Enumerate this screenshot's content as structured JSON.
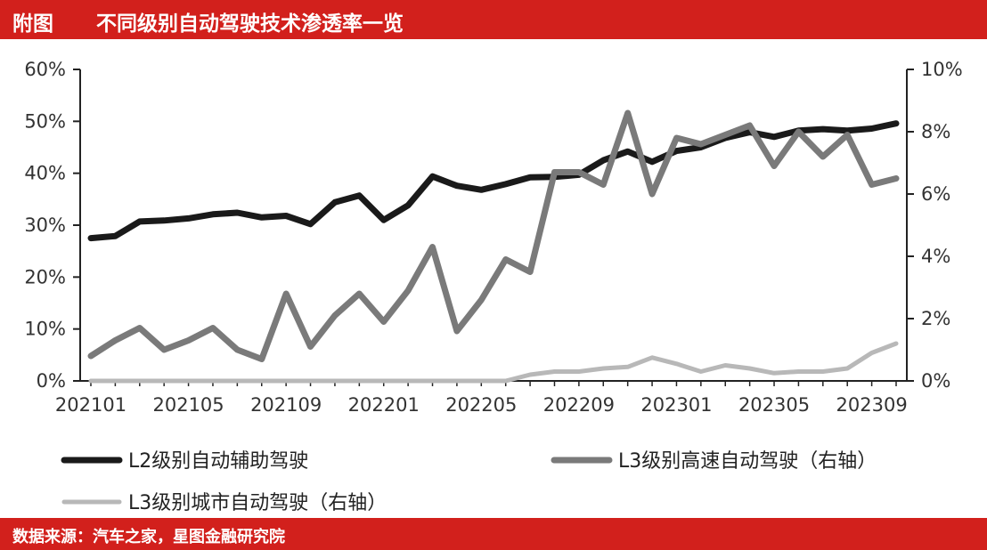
{
  "header": {
    "tag": "附图",
    "title": "不同级别自动驾驶技术渗透率一览"
  },
  "footer": {
    "source": "数据来源：汽车之家，星图金融研究院"
  },
  "chart_data": {
    "type": "line",
    "title": "不同级别自动驾驶技术渗透率一览",
    "xlabel": "",
    "ylabel": "",
    "x_tick_labels": [
      "202101",
      "202105",
      "202109",
      "202201",
      "202205",
      "202209",
      "202301",
      "202305",
      "202309"
    ],
    "left_axis": {
      "ylim": [
        0,
        60
      ],
      "ticks": [
        "0%",
        "10%",
        "20%",
        "30%",
        "40%",
        "50%",
        "60%"
      ]
    },
    "right_axis": {
      "ylim": [
        0,
        10
      ],
      "ticks": [
        "0%",
        "2%",
        "4%",
        "6%",
        "8%",
        "10%"
      ]
    },
    "x": [
      "202101",
      "202102",
      "202103",
      "202104",
      "202105",
      "202106",
      "202107",
      "202108",
      "202109",
      "202110",
      "202111",
      "202112",
      "202201",
      "202202",
      "202203",
      "202204",
      "202205",
      "202206",
      "202207",
      "202208",
      "202209",
      "202210",
      "202211",
      "202212",
      "202301",
      "202302",
      "202303",
      "202304",
      "202305",
      "202306",
      "202307",
      "202308",
      "202309",
      "202310"
    ],
    "series": [
      {
        "name": "L2级别自动辅助驾驶",
        "axis": "left",
        "color": "#1a1a1a",
        "values": [
          27.5,
          27.9,
          30.7,
          30.9,
          31.3,
          32.1,
          32.4,
          31.5,
          31.8,
          30.2,
          34.4,
          35.7,
          31.0,
          33.8,
          39.4,
          37.6,
          36.8,
          37.9,
          39.2,
          39.3,
          39.7,
          42.5,
          44.2,
          42.2,
          44.3,
          45.0,
          46.8,
          47.9,
          47.0,
          48.2,
          48.5,
          48.2,
          48.6,
          49.6
        ]
      },
      {
        "name": "L3级别高速自动驾驶（右轴）",
        "axis": "right",
        "color": "#7a7a7a",
        "values": [
          0.8,
          1.3,
          1.7,
          1.0,
          1.3,
          1.7,
          1.0,
          0.7,
          2.8,
          1.1,
          2.1,
          2.8,
          1.9,
          2.9,
          4.3,
          1.6,
          2.6,
          3.9,
          3.5,
          6.7,
          6.7,
          6.3,
          8.6,
          6.0,
          7.8,
          7.6,
          7.9,
          8.2,
          6.9,
          8.0,
          7.2,
          7.9,
          6.3,
          6.5
        ]
      },
      {
        "name": "L3级别城市自动驾驶（右轴）",
        "axis": "right",
        "color": "#b8b8b8",
        "values": [
          0,
          0,
          0,
          0,
          0,
          0,
          0,
          0,
          0,
          0,
          0,
          0,
          0,
          0,
          0,
          0,
          0,
          0,
          0.2,
          0.3,
          0.3,
          0.4,
          0.45,
          0.75,
          0.55,
          0.3,
          0.5,
          0.4,
          0.25,
          0.3,
          0.3,
          0.4,
          0.9,
          1.2
        ]
      }
    ],
    "legend": {
      "placement": "bottom"
    },
    "grid": false
  }
}
